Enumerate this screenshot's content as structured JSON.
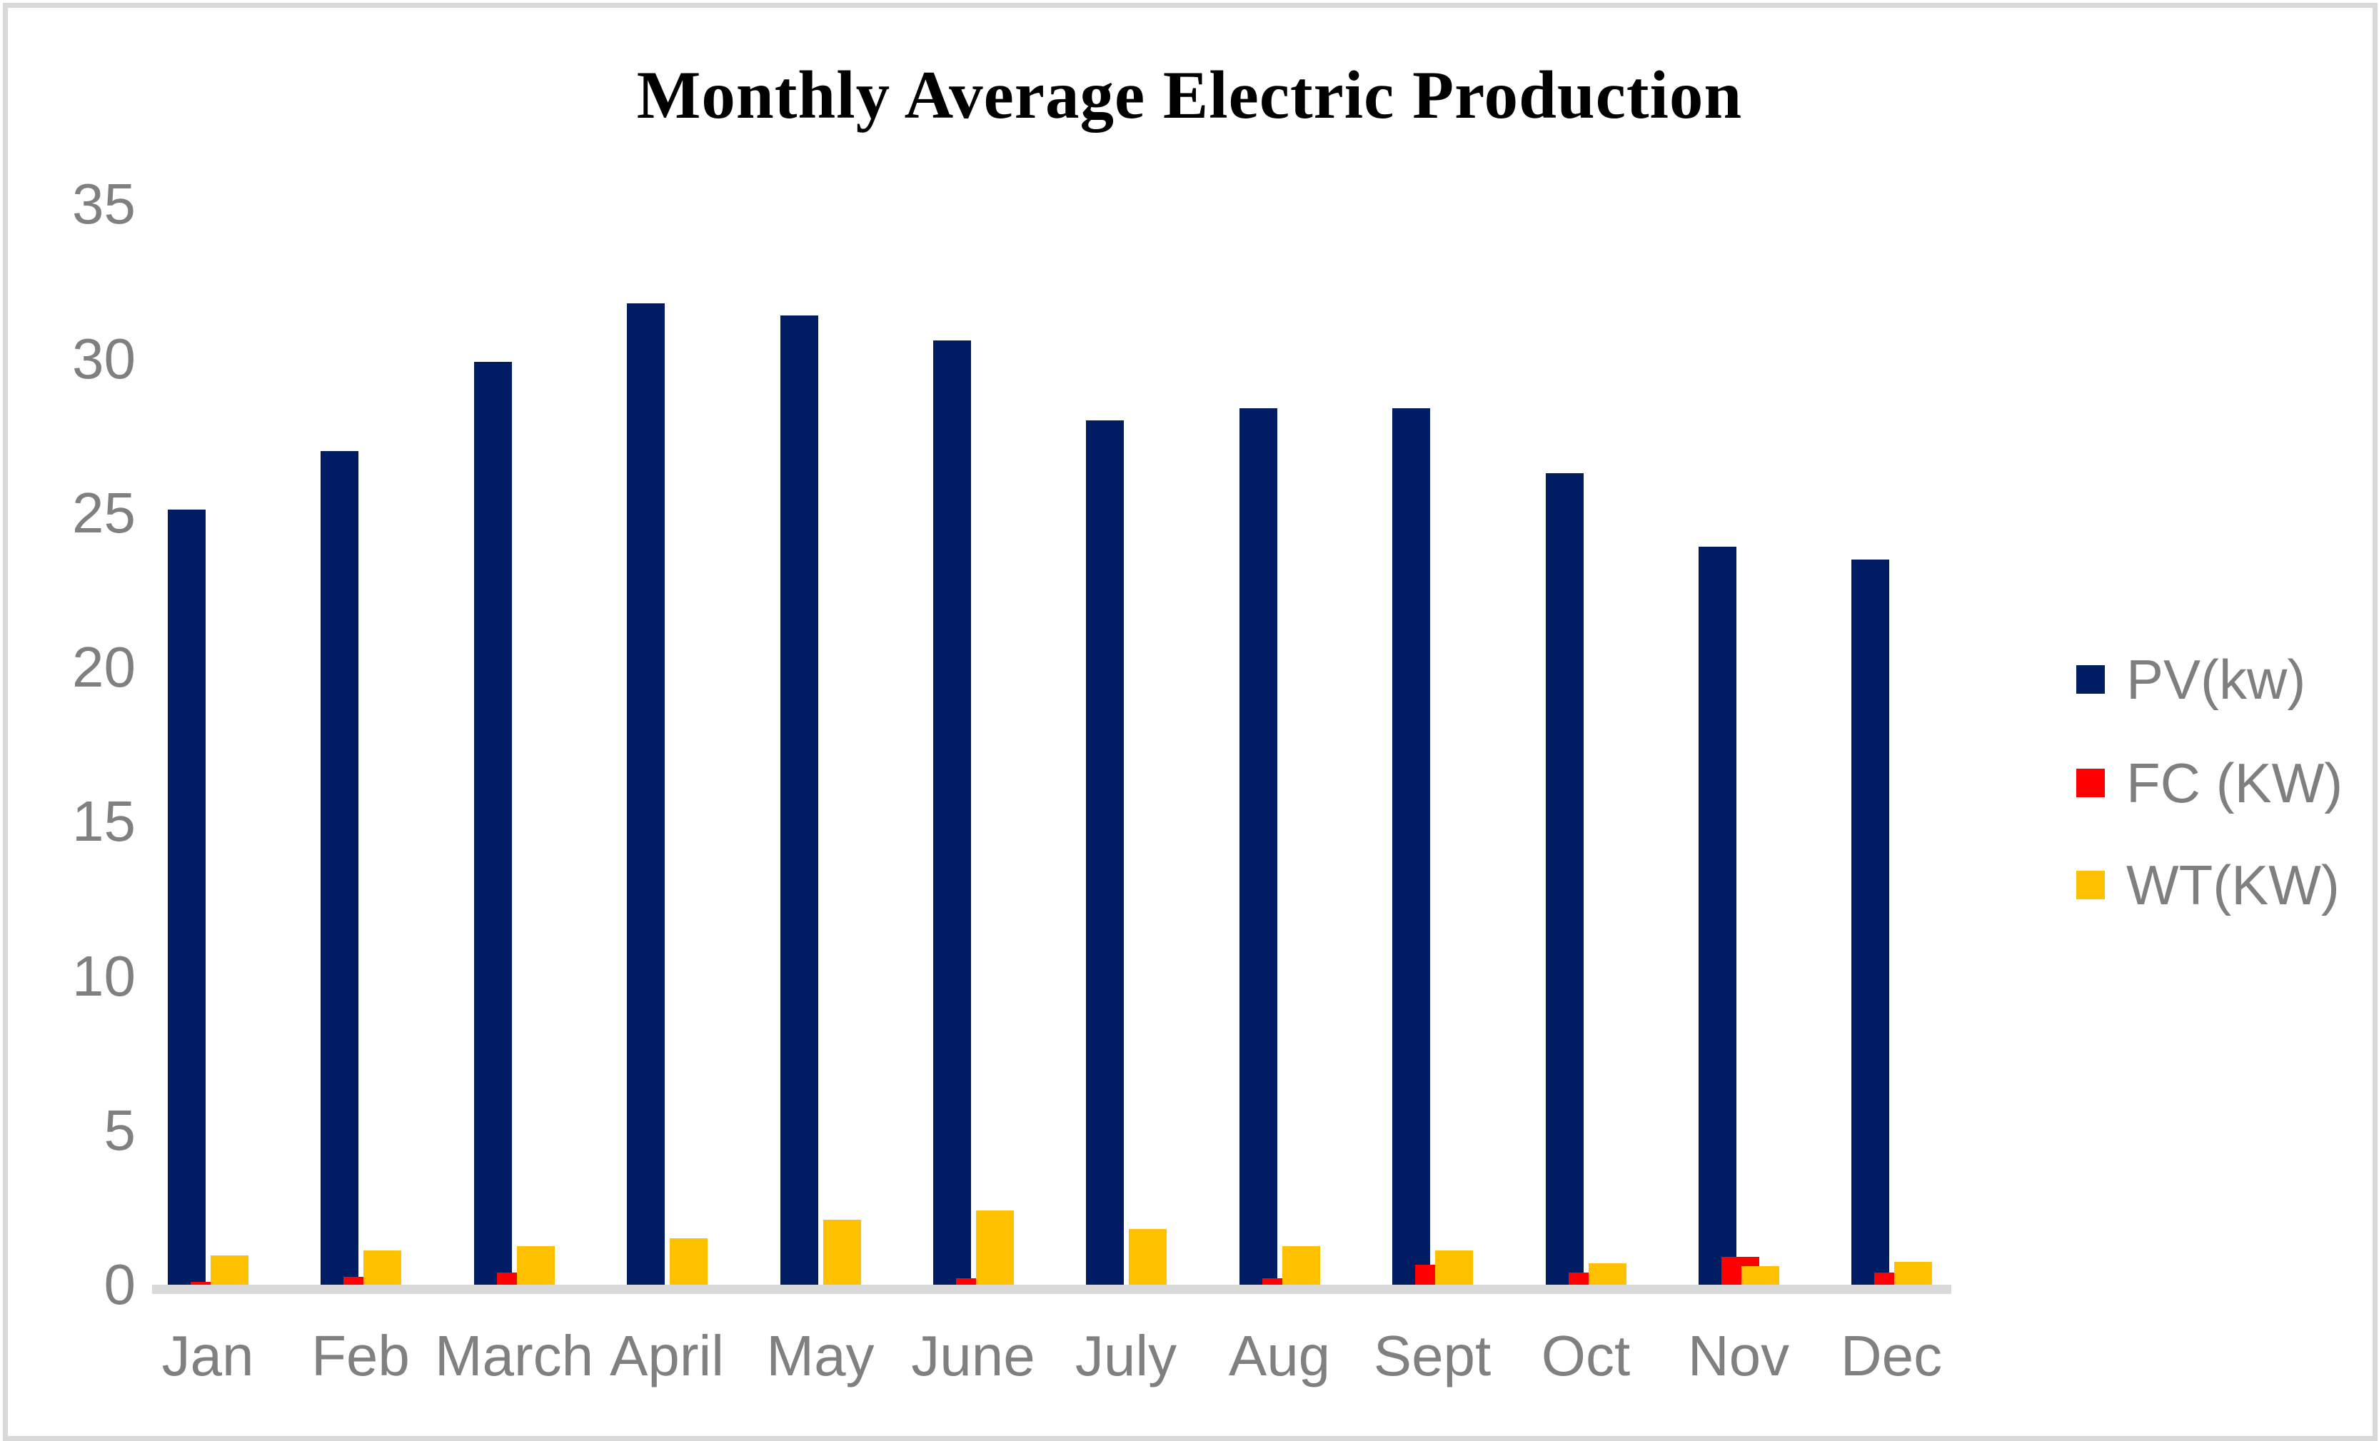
{
  "chart_data": {
    "type": "bar",
    "title": "Monthly Average Electric Production",
    "categories": [
      "Jan",
      "Feb",
      "March",
      "April",
      "May",
      "June",
      "July",
      "Aug",
      "Sept",
      "Oct",
      "Nov",
      "Dec"
    ],
    "series": [
      {
        "name": "PV(kw)",
        "color": "#001C63",
        "values": [
          25.1,
          27.0,
          29.9,
          31.8,
          31.4,
          30.6,
          28.0,
          28.4,
          28.4,
          26.3,
          23.9,
          23.5
        ]
      },
      {
        "name": "FC (KW)",
        "color": "#FF0000",
        "values": [
          0.1,
          0.25,
          0.4,
          0,
          0,
          0.2,
          0,
          0.2,
          0.65,
          0.4,
          0.9,
          0.4
        ]
      },
      {
        "name": "WT(KW)",
        "color": "#FFC000",
        "values": [
          0.95,
          1.1,
          1.25,
          1.5,
          2.1,
          2.4,
          1.8,
          1.25,
          1.1,
          0.7,
          0.6,
          0.75
        ]
      }
    ],
    "y_ticks": [
      0,
      5,
      10,
      15,
      20,
      25,
      30,
      35
    ],
    "ylim": [
      0,
      35
    ],
    "xlabel": "",
    "ylabel": "",
    "grid": false,
    "legend_position": "right",
    "axis_line_color": "#D9D9D9",
    "tick_label_color": "#808080",
    "legend_text_color": "#7F7F7F",
    "frame_color": "#D9D9D9",
    "background_color": "#FFFFFF"
  }
}
